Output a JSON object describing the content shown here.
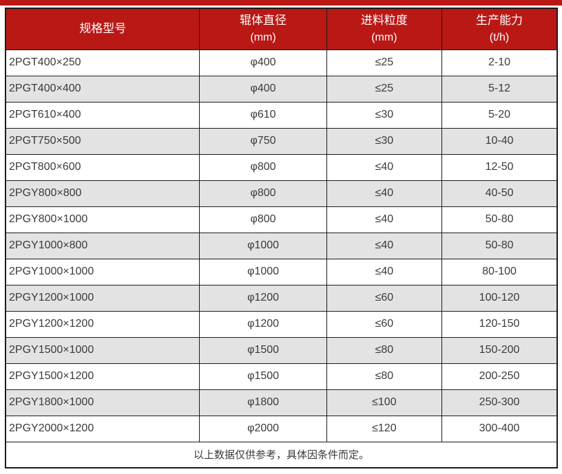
{
  "colors": {
    "accent_red": "#b91815",
    "border": "#1b1b1b",
    "alt_row_bg": "#e3e3e3",
    "header_text": "#ffffff",
    "body_text": "#3a3a3a"
  },
  "table": {
    "columns": [
      {
        "label": "规格型号",
        "unit": ""
      },
      {
        "label": "辊体直径",
        "unit": "(mm)"
      },
      {
        "label": "进料粒度",
        "unit": "(mm)"
      },
      {
        "label": "生产能力",
        "unit": "(t/h)"
      }
    ],
    "rows": [
      {
        "model": "2PGT400×250",
        "diameter": "φ400",
        "feed": "≤25",
        "capacity": "2-10"
      },
      {
        "model": "2PGT400×400",
        "diameter": "φ400",
        "feed": "≤25",
        "capacity": "5-12"
      },
      {
        "model": "2PGT610×400",
        "diameter": "φ610",
        "feed": "≤30",
        "capacity": "5-20"
      },
      {
        "model": "2PGT750×500",
        "diameter": "φ750",
        "feed": "≤30",
        "capacity": "10-40"
      },
      {
        "model": "2PGT800×600",
        "diameter": "φ800",
        "feed": "≤40",
        "capacity": "12-50"
      },
      {
        "model": "2PGY800×800",
        "diameter": "φ800",
        "feed": "≤40",
        "capacity": "40-50"
      },
      {
        "model": "2PGY800×1000",
        "diameter": "φ800",
        "feed": "≤40",
        "capacity": "50-80"
      },
      {
        "model": "2PGY1000×800",
        "diameter": "φ1000",
        "feed": "≤40",
        "capacity": "50-80"
      },
      {
        "model": "2PGY1000×1000",
        "diameter": "φ1000",
        "feed": "≤40",
        "capacity": "80-100"
      },
      {
        "model": "2PGY1200×1000",
        "diameter": "φ1200",
        "feed": "≤60",
        "capacity": "100-120"
      },
      {
        "model": "2PGY1200×1200",
        "diameter": "φ1200",
        "feed": "≤60",
        "capacity": "120-150"
      },
      {
        "model": "2PGY1500×1000",
        "diameter": "φ1500",
        "feed": "≤80",
        "capacity": "150-200"
      },
      {
        "model": "2PGY1500×1200",
        "diameter": "φ1500",
        "feed": "≤80",
        "capacity": "200-250"
      },
      {
        "model": "2PGY1800×1000",
        "diameter": "φ1800",
        "feed": "≤100",
        "capacity": "250-300"
      },
      {
        "model": "2PGY2000×1200",
        "diameter": "φ2000",
        "feed": "≤120",
        "capacity": "300-400"
      }
    ],
    "footnote": "以上数据仅供参考，具体因条件而定。"
  }
}
